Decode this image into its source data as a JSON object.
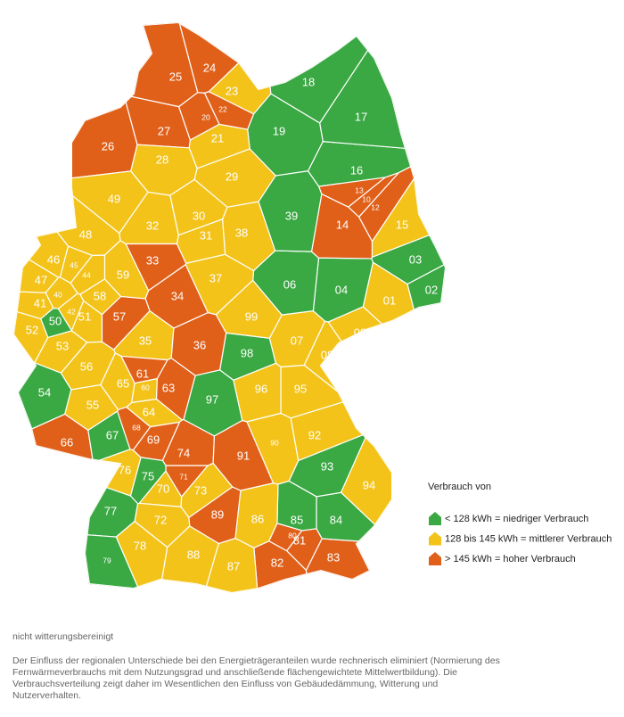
{
  "legend": {
    "title": "Verbrauch von",
    "items": [
      {
        "label": "< 128 kWh = niedriger Verbrauch",
        "color": "#3aa843"
      },
      {
        "label": "128 bis 145 kWh = mittlerer Verbrauch",
        "color": "#f3c31a"
      },
      {
        "label": "> 145 kWh = hoher Verbrauch",
        "color": "#e0601a"
      }
    ]
  },
  "regions": [
    {
      "label": "01",
      "color": "#f3c31a"
    },
    {
      "label": "02",
      "color": "#3aa843"
    },
    {
      "label": "03",
      "color": "#3aa843"
    },
    {
      "label": "04",
      "color": "#3aa843"
    },
    {
      "label": "06",
      "color": "#3aa843"
    },
    {
      "label": "07",
      "color": "#f3c31a"
    },
    {
      "label": "08",
      "color": "#f3c31a"
    },
    {
      "label": "09",
      "color": "#f3c31a"
    },
    {
      "label": "10",
      "color": "#e0601a"
    },
    {
      "label": "12",
      "color": "#e0601a"
    },
    {
      "label": "13",
      "color": "#e0601a"
    },
    {
      "label": "14",
      "color": "#e0601a"
    },
    {
      "label": "15",
      "color": "#f3c31a"
    },
    {
      "label": "16",
      "color": "#3aa843"
    },
    {
      "label": "17",
      "color": "#3aa843"
    },
    {
      "label": "18",
      "color": "#3aa843"
    },
    {
      "label": "19",
      "color": "#3aa843"
    },
    {
      "label": "20",
      "color": "#e0601a"
    },
    {
      "label": "21",
      "color": "#f3c31a"
    },
    {
      "label": "22",
      "color": "#e0601a"
    },
    {
      "label": "23",
      "color": "#f3c31a"
    },
    {
      "label": "24",
      "color": "#e0601a"
    },
    {
      "label": "25",
      "color": "#e0601a"
    },
    {
      "label": "26",
      "color": "#e0601a"
    },
    {
      "label": "27",
      "color": "#e0601a"
    },
    {
      "label": "28",
      "color": "#f3c31a"
    },
    {
      "label": "29",
      "color": "#f3c31a"
    },
    {
      "label": "30",
      "color": "#f3c31a"
    },
    {
      "label": "31",
      "color": "#f3c31a"
    },
    {
      "label": "32",
      "color": "#f3c31a"
    },
    {
      "label": "33",
      "color": "#e0601a"
    },
    {
      "label": "34",
      "color": "#e0601a"
    },
    {
      "label": "35",
      "color": "#f3c31a"
    },
    {
      "label": "36",
      "color": "#e0601a"
    },
    {
      "label": "37",
      "color": "#f3c31a"
    },
    {
      "label": "38",
      "color": "#f3c31a"
    },
    {
      "label": "39",
      "color": "#3aa843"
    },
    {
      "label": "40",
      "color": "#f3c31a"
    },
    {
      "label": "41",
      "color": "#f3c31a"
    },
    {
      "label": "42",
      "color": "#f3c31a"
    },
    {
      "label": "44",
      "color": "#f3c31a"
    },
    {
      "label": "45",
      "color": "#f3c31a"
    },
    {
      "label": "46",
      "color": "#f3c31a"
    },
    {
      "label": "47",
      "color": "#f3c31a"
    },
    {
      "label": "48",
      "color": "#f3c31a"
    },
    {
      "label": "49",
      "color": "#f3c31a"
    },
    {
      "label": "50",
      "color": "#3aa843"
    },
    {
      "label": "51",
      "color": "#f3c31a"
    },
    {
      "label": "52",
      "color": "#f3c31a"
    },
    {
      "label": "53",
      "color": "#f3c31a"
    },
    {
      "label": "54",
      "color": "#3aa843"
    },
    {
      "label": "55",
      "color": "#f3c31a"
    },
    {
      "label": "56",
      "color": "#f3c31a"
    },
    {
      "label": "57",
      "color": "#e0601a"
    },
    {
      "label": "58",
      "color": "#f3c31a"
    },
    {
      "label": "59",
      "color": "#f3c31a"
    },
    {
      "label": "60",
      "color": "#f3c31a"
    },
    {
      "label": "61",
      "color": "#e0601a"
    },
    {
      "label": "63",
      "color": "#e0601a"
    },
    {
      "label": "64",
      "color": "#f3c31a"
    },
    {
      "label": "65",
      "color": "#f3c31a"
    },
    {
      "label": "66",
      "color": "#e0601a"
    },
    {
      "label": "67",
      "color": "#3aa843"
    },
    {
      "label": "68",
      "color": "#e0601a"
    },
    {
      "label": "69",
      "color": "#e0601a"
    },
    {
      "label": "70",
      "color": "#f3c31a"
    },
    {
      "label": "71",
      "color": "#e0601a"
    },
    {
      "label": "72",
      "color": "#f3c31a"
    },
    {
      "label": "73",
      "color": "#f3c31a"
    },
    {
      "label": "74",
      "color": "#e0601a"
    },
    {
      "label": "75",
      "color": "#3aa843"
    },
    {
      "label": "76",
      "color": "#f3c31a"
    },
    {
      "label": "77",
      "color": "#3aa843"
    },
    {
      "label": "78",
      "color": "#f3c31a"
    },
    {
      "label": "79",
      "color": "#3aa843"
    },
    {
      "label": "80",
      "color": "#e0601a"
    },
    {
      "label": "81",
      "color": "#e0601a"
    },
    {
      "label": "82",
      "color": "#e0601a"
    },
    {
      "label": "83",
      "color": "#e0601a"
    },
    {
      "label": "84",
      "color": "#3aa843"
    },
    {
      "label": "85",
      "color": "#3aa843"
    },
    {
      "label": "86",
      "color": "#f3c31a"
    },
    {
      "label": "87",
      "color": "#f3c31a"
    },
    {
      "label": "88",
      "color": "#f3c31a"
    },
    {
      "label": "89",
      "color": "#e0601a"
    },
    {
      "label": "90",
      "color": "#f3c31a"
    },
    {
      "label": "91",
      "color": "#e0601a"
    },
    {
      "label": "92",
      "color": "#f3c31a"
    },
    {
      "label": "93",
      "color": "#3aa843"
    },
    {
      "label": "94",
      "color": "#f3c31a"
    },
    {
      "label": "95",
      "color": "#f3c31a"
    },
    {
      "label": "96",
      "color": "#f3c31a"
    },
    {
      "label": "97",
      "color": "#3aa843"
    },
    {
      "label": "98",
      "color": "#3aa843"
    },
    {
      "label": "99",
      "color": "#f3c31a"
    }
  ],
  "notes": [
    "nicht witterungsbereinigt",
    "Der Einfluss der regionalen Unterschiede bei den Energieträgeranteilen wurde rechnerisch eliminiert (Normierung des Fernwärmeverbrauchs mit dem Nutzungsgrad und anschließende flächengewichtete Mittelwertbildung). Die Verbrauchsverteilung zeigt daher im Wesentlichen den Einfluss von Gebäudedämmung, Witterung und Nutzerverhalten."
  ]
}
